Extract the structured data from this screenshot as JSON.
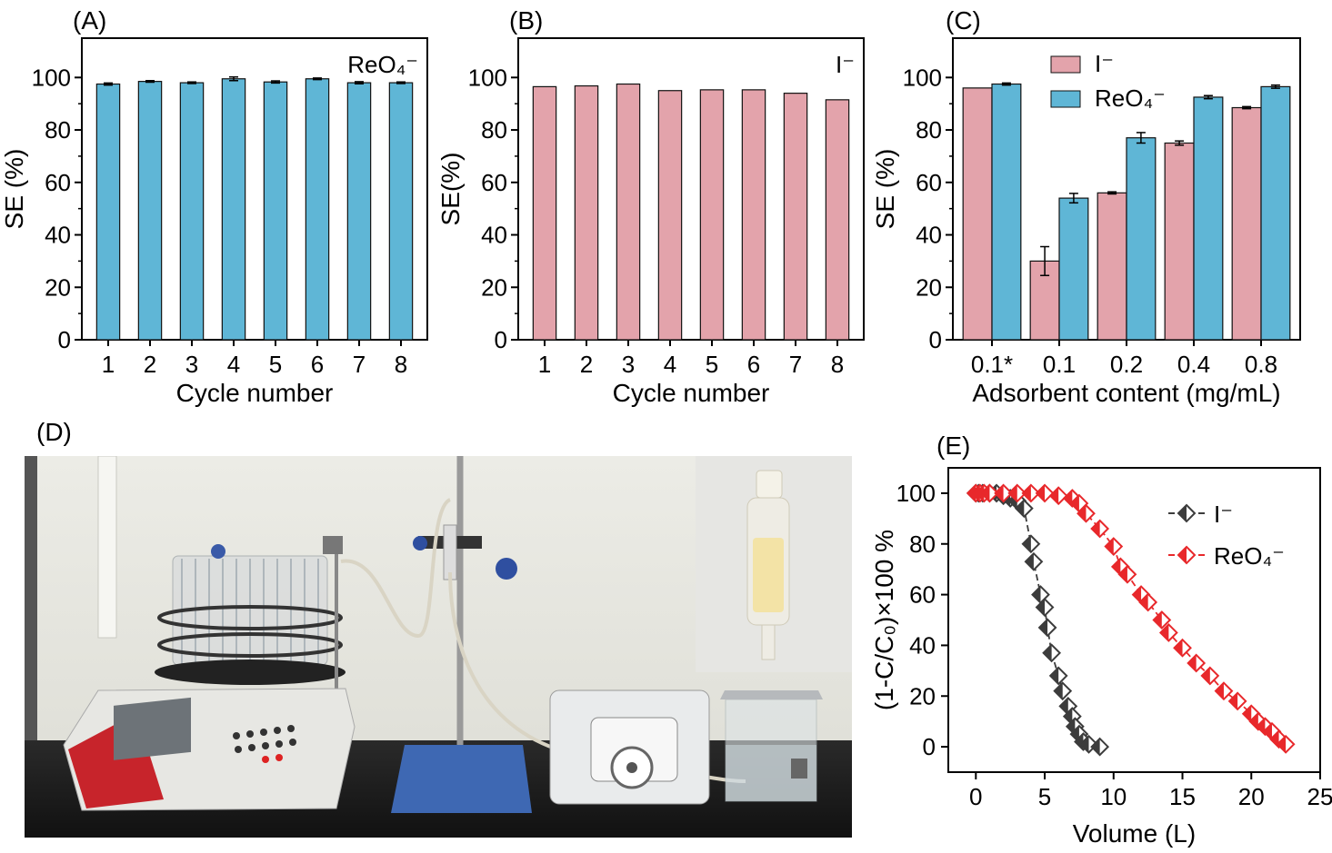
{
  "panel_labels": {
    "A": "(A)",
    "B": "(B)",
    "C": "(C)",
    "D": "(D)",
    "E": "(E)"
  },
  "colors": {
    "blue": "#5fb6d6",
    "pink": "#e3a3ab",
    "dark": "#3c3c3c",
    "red": "#e8282b"
  },
  "chart_data": [
    {
      "id": "A",
      "type": "bar",
      "categories": [
        "1",
        "2",
        "3",
        "4",
        "5",
        "6",
        "7",
        "8"
      ],
      "values": [
        97.5,
        98.5,
        98.0,
        99.5,
        98.3,
        99.5,
        98.0,
        98.0
      ],
      "errors": [
        0.4,
        0.3,
        0.3,
        0.7,
        0.4,
        0.3,
        0.4,
        0.3
      ],
      "xlabel": "Cycle number",
      "ylabel": "SE (%)",
      "ylim": [
        0,
        115
      ],
      "yticks": [
        "0",
        "20",
        "40",
        "60",
        "80",
        "100"
      ],
      "annotation": "ReO₄⁻",
      "bar_color": "#5fb6d6"
    },
    {
      "id": "B",
      "type": "bar",
      "categories": [
        "1",
        "2",
        "3",
        "4",
        "5",
        "6",
        "7",
        "8"
      ],
      "values": [
        96.5,
        96.8,
        97.5,
        95.0,
        95.3,
        95.3,
        94.0,
        91.5
      ],
      "xlabel": "Cycle number",
      "ylabel": "SE(%)",
      "ylim": [
        0,
        115
      ],
      "yticks": [
        "0",
        "20",
        "40",
        "60",
        "80",
        "100"
      ],
      "annotation": "I⁻",
      "bar_color": "#e3a3ab"
    },
    {
      "id": "C",
      "type": "bar",
      "categories": [
        "0.1*",
        "0.1",
        "0.2",
        "0.4",
        "0.8"
      ],
      "series": [
        {
          "name": "I⁻",
          "values": [
            96.0,
            30.0,
            56.0,
            75.0,
            88.5
          ],
          "errors": [
            0,
            5.5,
            0.4,
            0.8,
            0.4
          ],
          "color": "#e3a3ab"
        },
        {
          "name": "ReO₄⁻",
          "values": [
            97.5,
            54.0,
            77.0,
            92.5,
            96.5
          ],
          "errors": [
            0.4,
            1.8,
            2.0,
            0.6,
            0.6
          ],
          "color": "#5fb6d6"
        }
      ],
      "xlabel": "Adsorbent content (mg/mL)",
      "ylabel": "SE (%)",
      "ylim": [
        0,
        115
      ],
      "yticks": [
        "0",
        "20",
        "40",
        "60",
        "80",
        "100"
      ],
      "legend": "top-center"
    },
    {
      "id": "E",
      "type": "line",
      "xlabel": "Volume (L)",
      "ylabel": "(1-C/C₀)×100 %",
      "xlim": [
        -2,
        25
      ],
      "ylim": [
        -10,
        110
      ],
      "xticks": [
        "0",
        "5",
        "10",
        "15",
        "20",
        "25"
      ],
      "yticks": [
        "0",
        "20",
        "40",
        "60",
        "80",
        "100"
      ],
      "legend": "top-right",
      "series": [
        {
          "name": "I⁻",
          "color": "#3c3c3c",
          "x": [
            0,
            0.2,
            0.5,
            1.0,
            1.5,
            2.0,
            2.5,
            3.0,
            3.5,
            4.0,
            4.2,
            4.7,
            5.0,
            5.2,
            5.5,
            6.0,
            6.3,
            6.7,
            7.0,
            7.2,
            7.5,
            7.8,
            8.2,
            9.0
          ],
          "y": [
            100,
            100,
            100,
            100,
            100,
            99,
            98,
            97,
            94,
            80,
            73,
            60,
            55,
            47,
            37,
            28,
            22,
            16,
            12,
            8,
            5,
            2,
            1,
            0
          ]
        },
        {
          "name": "ReO₄⁻",
          "color": "#e8282b",
          "x": [
            0,
            0.3,
            0.6,
            1.0,
            2.0,
            3.0,
            4.0,
            5.0,
            6.0,
            7.0,
            7.5,
            8.0,
            9.0,
            10.0,
            10.5,
            11.0,
            12.0,
            12.5,
            13.5,
            14.0,
            15.0,
            16.0,
            17.0,
            18.0,
            19.0,
            20.0,
            20.5,
            21.0,
            21.5,
            22.0,
            22.5
          ],
          "y": [
            100,
            100,
            100,
            100,
            100,
            100,
            100,
            100,
            99,
            98,
            96,
            92,
            86,
            79,
            71,
            68,
            60,
            57,
            50,
            45,
            39,
            33,
            28,
            22,
            18,
            13,
            10,
            8,
            6,
            3,
            1
          ]
        }
      ]
    }
  ],
  "photo": {
    "inset_present": true
  }
}
